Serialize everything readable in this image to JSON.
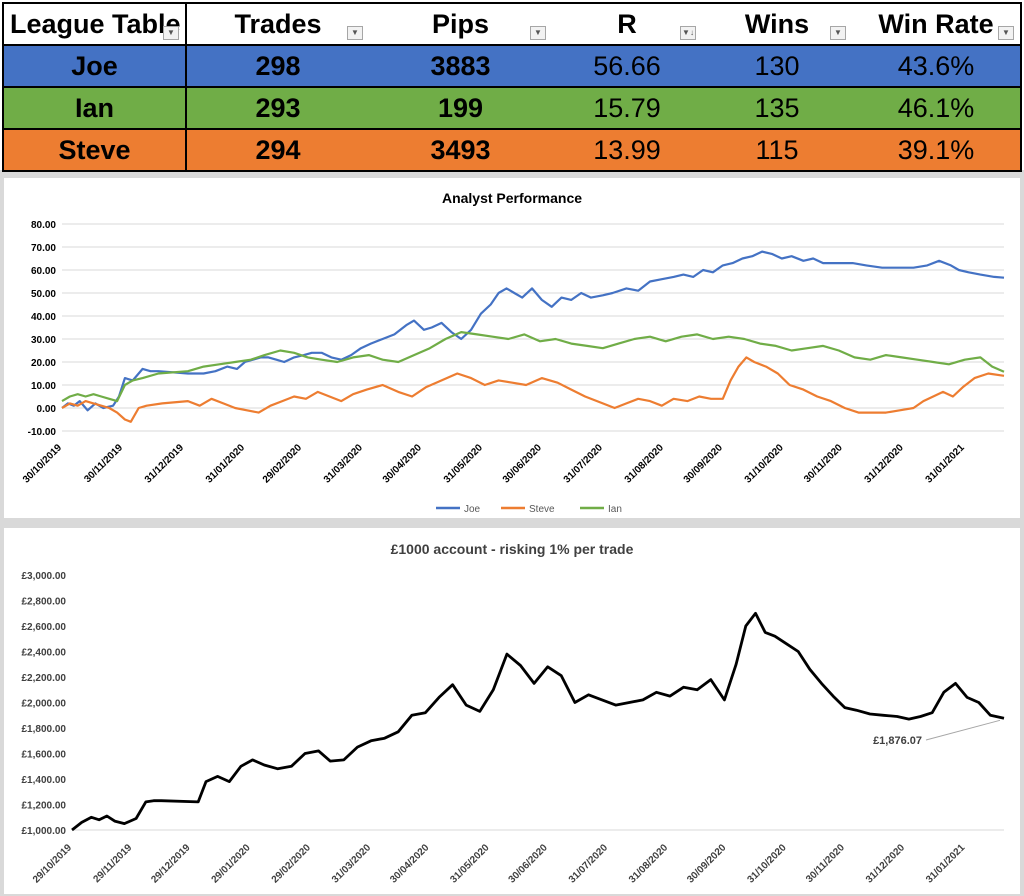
{
  "league_table": {
    "headers": [
      "League Table",
      "Trades",
      "Pips",
      "R",
      "Wins",
      "Win Rate"
    ],
    "rows": [
      {
        "name": "Joe",
        "trades": "298",
        "pips": "3883",
        "r": "56.66",
        "wins": "130",
        "win_rate": "43.6%",
        "color": "#4472c4"
      },
      {
        "name": "Ian",
        "trades": "293",
        "pips": "199",
        "r": "15.79",
        "wins": "135",
        "win_rate": "46.1%",
        "color": "#70ad47"
      },
      {
        "name": "Steve",
        "trades": "294",
        "pips": "3493",
        "r": "13.99",
        "wins": "115",
        "win_rate": "39.1%",
        "color": "#ed7d31"
      }
    ]
  },
  "chart_data": [
    {
      "type": "line",
      "title": "Analyst Performance",
      "ylim": [
        -10,
        80
      ],
      "yticks": [
        "-10.00",
        "0.00",
        "10.00",
        "20.00",
        "30.00",
        "40.00",
        "50.00",
        "60.00",
        "70.00",
        "80.00"
      ],
      "xlim": [
        "2019-10-30",
        "2021-02-20"
      ],
      "xticks": [
        "30/10/2019",
        "30/11/2019",
        "31/12/2019",
        "31/01/2020",
        "29/02/2020",
        "31/03/2020",
        "30/04/2020",
        "31/05/2020",
        "30/06/2020",
        "31/07/2020",
        "31/08/2020",
        "30/09/2020",
        "31/10/2020",
        "30/11/2020",
        "31/12/2020",
        "31/01/2021"
      ],
      "grid": true,
      "legend": "bottom",
      "series": [
        {
          "name": "Joe",
          "color": "#4472c4",
          "x": [
            "2019-10-30",
            "2019-11-02",
            "2019-11-05",
            "2019-11-08",
            "2019-11-12",
            "2019-11-16",
            "2019-11-20",
            "2019-11-25",
            "2019-11-28",
            "2019-12-01",
            "2019-12-05",
            "2019-12-10",
            "2019-12-14",
            "2019-12-18",
            "2020-01-02",
            "2020-01-10",
            "2020-01-16",
            "2020-01-22",
            "2020-01-27",
            "2020-01-31",
            "2020-02-04",
            "2020-02-08",
            "2020-02-12",
            "2020-02-16",
            "2020-02-20",
            "2020-02-25",
            "2020-03-01",
            "2020-03-05",
            "2020-03-10",
            "2020-03-15",
            "2020-03-20",
            "2020-03-25",
            "2020-03-30",
            "2020-04-04",
            "2020-04-10",
            "2020-04-16",
            "2020-04-22",
            "2020-04-26",
            "2020-05-01",
            "2020-05-05",
            "2020-05-10",
            "2020-05-15",
            "2020-05-20",
            "2020-05-25",
            "2020-05-30",
            "2020-06-04",
            "2020-06-08",
            "2020-06-12",
            "2020-06-16",
            "2020-06-20",
            "2020-06-25",
            "2020-06-30",
            "2020-07-05",
            "2020-07-10",
            "2020-07-15",
            "2020-07-20",
            "2020-07-25",
            "2020-07-31",
            "2020-08-05",
            "2020-08-12",
            "2020-08-18",
            "2020-08-24",
            "2020-08-30",
            "2020-09-05",
            "2020-09-10",
            "2020-09-15",
            "2020-09-20",
            "2020-09-25",
            "2020-09-30",
            "2020-10-05",
            "2020-10-10",
            "2020-10-15",
            "2020-10-20",
            "2020-10-25",
            "2020-10-30",
            "2020-11-04",
            "2020-11-10",
            "2020-11-15",
            "2020-11-20",
            "2020-11-25",
            "2020-11-30",
            "2020-12-05",
            "2020-12-12",
            "2020-12-20",
            "2020-12-28",
            "2021-01-05",
            "2021-01-12",
            "2021-01-18",
            "2021-01-24",
            "2021-01-28",
            "2021-02-02",
            "2021-02-08",
            "2021-02-15",
            "2021-02-20"
          ],
          "y": [
            0,
            2,
            1,
            3,
            -1,
            2,
            0,
            1,
            5,
            13,
            12,
            17,
            16,
            16,
            15,
            15,
            16,
            18,
            17,
            20,
            21,
            22,
            22,
            21,
            20,
            22,
            23,
            24,
            24,
            22,
            21,
            23,
            26,
            28,
            30,
            32,
            36,
            38,
            34,
            35,
            37,
            33,
            30,
            34,
            41,
            45,
            50,
            52,
            50,
            48,
            52,
            47,
            44,
            48,
            47,
            50,
            48,
            49,
            50,
            52,
            51,
            55,
            56,
            57,
            58,
            57,
            60,
            59,
            62,
            63,
            65,
            66,
            68,
            67,
            65,
            66,
            64,
            65,
            63,
            63,
            63,
            63,
            62,
            61,
            61,
            61,
            62,
            64,
            62,
            60,
            59,
            58,
            57,
            56.66
          ]
        },
        {
          "name": "Steve",
          "color": "#ed7d31",
          "x": [
            "2019-10-30",
            "2019-11-03",
            "2019-11-07",
            "2019-11-11",
            "2019-11-15",
            "2019-11-19",
            "2019-11-23",
            "2019-11-27",
            "2019-12-01",
            "2019-12-04",
            "2019-12-08",
            "2019-12-12",
            "2019-12-20",
            "2020-01-02",
            "2020-01-08",
            "2020-01-14",
            "2020-01-20",
            "2020-01-26",
            "2020-02-01",
            "2020-02-07",
            "2020-02-13",
            "2020-02-19",
            "2020-02-25",
            "2020-03-02",
            "2020-03-08",
            "2020-03-14",
            "2020-03-20",
            "2020-03-26",
            "2020-04-02",
            "2020-04-10",
            "2020-04-18",
            "2020-04-25",
            "2020-05-02",
            "2020-05-10",
            "2020-05-18",
            "2020-05-25",
            "2020-06-01",
            "2020-06-08",
            "2020-06-15",
            "2020-06-22",
            "2020-06-30",
            "2020-07-08",
            "2020-07-15",
            "2020-07-22",
            "2020-07-31",
            "2020-08-06",
            "2020-08-12",
            "2020-08-18",
            "2020-08-24",
            "2020-08-30",
            "2020-09-05",
            "2020-09-12",
            "2020-09-18",
            "2020-09-24",
            "2020-09-30",
            "2020-10-04",
            "2020-10-08",
            "2020-10-12",
            "2020-10-16",
            "2020-10-22",
            "2020-10-28",
            "2020-11-03",
            "2020-11-10",
            "2020-11-17",
            "2020-11-24",
            "2020-12-01",
            "2020-12-08",
            "2020-12-15",
            "2020-12-22",
            "2020-12-29",
            "2021-01-05",
            "2021-01-10",
            "2021-01-15",
            "2021-01-20",
            "2021-01-25",
            "2021-01-30",
            "2021-02-05",
            "2021-02-12",
            "2021-02-20"
          ],
          "y": [
            0,
            2,
            1,
            3,
            2,
            1,
            0,
            -2,
            -5,
            -6,
            0,
            1,
            2,
            3,
            1,
            4,
            2,
            0,
            -1,
            -2,
            1,
            3,
            5,
            4,
            7,
            5,
            3,
            6,
            8,
            10,
            7,
            5,
            9,
            12,
            15,
            13,
            10,
            12,
            11,
            10,
            13,
            11,
            8,
            5,
            2,
            0,
            2,
            4,
            3,
            1,
            4,
            3,
            5,
            4,
            4,
            12,
            18,
            22,
            20,
            18,
            15,
            10,
            8,
            5,
            3,
            0,
            -2,
            -2,
            -2,
            -1,
            0,
            3,
            5,
            7,
            5,
            9,
            13,
            15,
            13.99
          ]
        },
        {
          "name": "Ian",
          "color": "#70ad47",
          "x": [
            "2019-10-30",
            "2019-11-03",
            "2019-11-07",
            "2019-11-11",
            "2019-11-15",
            "2019-11-19",
            "2019-11-23",
            "2019-11-27",
            "2019-12-01",
            "2019-12-05",
            "2019-12-10",
            "2019-12-18",
            "2020-01-02",
            "2020-01-10",
            "2020-01-18",
            "2020-01-26",
            "2020-02-03",
            "2020-02-10",
            "2020-02-18",
            "2020-02-25",
            "2020-03-03",
            "2020-03-10",
            "2020-03-18",
            "2020-03-26",
            "2020-04-03",
            "2020-04-10",
            "2020-04-18",
            "2020-04-26",
            "2020-05-04",
            "2020-05-12",
            "2020-05-20",
            "2020-05-28",
            "2020-06-05",
            "2020-06-13",
            "2020-06-21",
            "2020-06-29",
            "2020-07-07",
            "2020-07-15",
            "2020-07-23",
            "2020-07-31",
            "2020-08-08",
            "2020-08-16",
            "2020-08-24",
            "2020-09-01",
            "2020-09-09",
            "2020-09-17",
            "2020-09-25",
            "2020-10-03",
            "2020-10-11",
            "2020-10-19",
            "2020-10-27",
            "2020-11-04",
            "2020-11-12",
            "2020-11-20",
            "2020-11-28",
            "2020-12-06",
            "2020-12-14",
            "2020-12-22",
            "2020-12-30",
            "2021-01-07",
            "2021-01-15",
            "2021-01-23",
            "2021-01-31",
            "2021-02-08",
            "2021-02-14",
            "2021-02-20"
          ],
          "y": [
            3,
            5,
            6,
            5,
            6,
            5,
            4,
            3,
            10,
            12,
            13,
            15,
            16,
            18,
            19,
            20,
            21,
            23,
            25,
            24,
            22,
            21,
            20,
            22,
            23,
            21,
            20,
            23,
            26,
            30,
            33,
            32,
            31,
            30,
            32,
            29,
            30,
            28,
            27,
            26,
            28,
            30,
            31,
            29,
            31,
            32,
            30,
            31,
            30,
            28,
            27,
            25,
            26,
            27,
            25,
            22,
            21,
            23,
            22,
            21,
            20,
            19,
            21,
            22,
            18,
            15.79
          ]
        }
      ]
    },
    {
      "type": "line",
      "title": "£1000 account - risking 1% per trade",
      "ylim": [
        1000,
        3000
      ],
      "yticks": [
        "£1,000.00",
        "£1,200.00",
        "£1,400.00",
        "£1,600.00",
        "£1,800.00",
        "£2,000.00",
        "£2,200.00",
        "£2,400.00",
        "£2,600.00",
        "£2,800.00",
        "£3,000.00"
      ],
      "xlim": [
        "2019-10-29",
        "2021-02-20"
      ],
      "xticks": [
        "29/10/2019",
        "29/11/2019",
        "29/12/2019",
        "29/01/2020",
        "29/02/2020",
        "31/03/2020",
        "30/04/2020",
        "31/05/2020",
        "30/06/2020",
        "31/07/2020",
        "31/08/2020",
        "30/09/2020",
        "31/10/2020",
        "30/11/2020",
        "31/12/2020",
        "31/01/2021"
      ],
      "annotation": "£1,876.07",
      "series": [
        {
          "name": "",
          "color": "#000000",
          "x": [
            "2019-10-29",
            "2019-11-03",
            "2019-11-08",
            "2019-11-12",
            "2019-11-16",
            "2019-11-20",
            "2019-11-25",
            "2019-12-01",
            "2019-12-06",
            "2019-12-10",
            "2019-12-14",
            "2020-01-02",
            "2020-01-06",
            "2020-01-12",
            "2020-01-18",
            "2020-01-24",
            "2020-01-30",
            "2020-02-05",
            "2020-02-12",
            "2020-02-19",
            "2020-02-26",
            "2020-03-04",
            "2020-03-10",
            "2020-03-17",
            "2020-03-24",
            "2020-03-31",
            "2020-04-07",
            "2020-04-14",
            "2020-04-21",
            "2020-04-28",
            "2020-05-05",
            "2020-05-12",
            "2020-05-19",
            "2020-05-26",
            "2020-06-02",
            "2020-06-09",
            "2020-06-16",
            "2020-06-23",
            "2020-06-30",
            "2020-07-07",
            "2020-07-14",
            "2020-07-21",
            "2020-07-28",
            "2020-08-04",
            "2020-08-11",
            "2020-08-18",
            "2020-08-25",
            "2020-09-01",
            "2020-09-08",
            "2020-09-15",
            "2020-09-22",
            "2020-09-29",
            "2020-10-05",
            "2020-10-10",
            "2020-10-15",
            "2020-10-20",
            "2020-10-25",
            "2020-10-31",
            "2020-11-06",
            "2020-11-12",
            "2020-11-18",
            "2020-11-24",
            "2020-11-30",
            "2020-12-06",
            "2020-12-13",
            "2020-12-20",
            "2020-12-27",
            "2021-01-02",
            "2021-01-08",
            "2021-01-14",
            "2021-01-20",
            "2021-01-26",
            "2021-02-01",
            "2021-02-07",
            "2021-02-13",
            "2021-02-20"
          ],
          "y": [
            1000,
            1060,
            1100,
            1080,
            1110,
            1070,
            1050,
            1090,
            1220,
            1230,
            1230,
            1220,
            1380,
            1420,
            1380,
            1500,
            1550,
            1510,
            1480,
            1500,
            1600,
            1620,
            1540,
            1550,
            1650,
            1700,
            1720,
            1770,
            1900,
            1920,
            2040,
            2140,
            1980,
            1930,
            2100,
            2380,
            2290,
            2150,
            2280,
            2210,
            2000,
            2060,
            2020,
            1980,
            2000,
            2020,
            2080,
            2050,
            2120,
            2100,
            2180,
            2020,
            2300,
            2600,
            2700,
            2550,
            2520,
            2460,
            2400,
            2260,
            2150,
            2050,
            1960,
            1940,
            1910,
            1900,
            1890,
            1870,
            1890,
            1920,
            2080,
            2150,
            2040,
            2000,
            1900,
            1876.07
          ]
        }
      ]
    }
  ]
}
